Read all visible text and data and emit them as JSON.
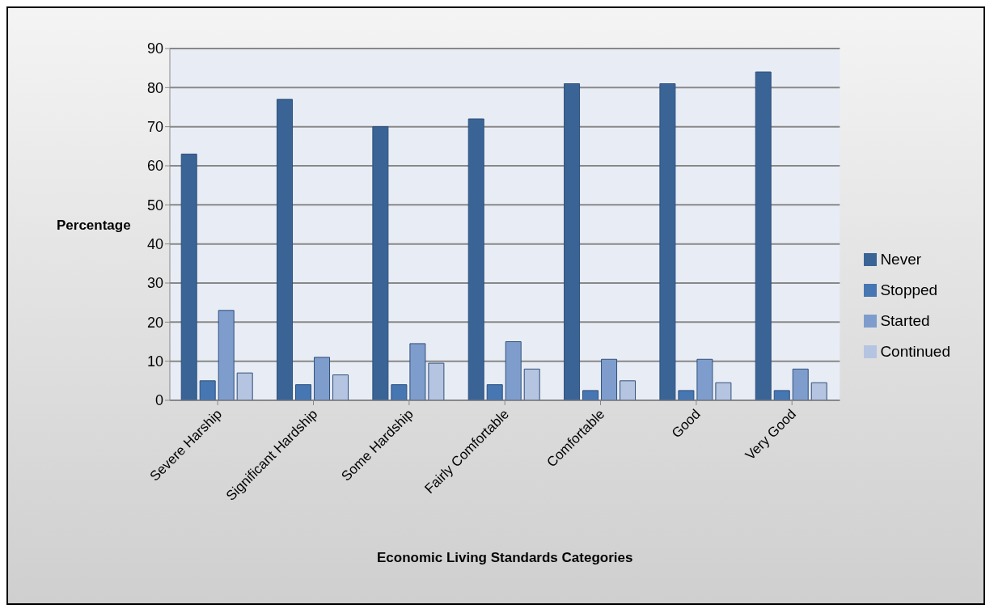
{
  "chart_data": {
    "type": "bar",
    "xlabel": "Economic Living Standards Categories",
    "ylabel": "Percentage",
    "categories": [
      "Severe Harship",
      "Significant Hardship",
      "Some Hardship",
      "Fairly Comfortable",
      "Comfortable",
      "Good",
      "Very Good"
    ],
    "series": [
      {
        "name": "Never",
        "color": "#3a6496",
        "values": [
          63,
          77,
          70,
          72,
          81,
          81,
          84
        ]
      },
      {
        "name": "Stopped",
        "color": "#4677b3",
        "values": [
          5,
          4,
          4,
          4,
          2.5,
          2.5,
          2.5
        ]
      },
      {
        "name": "Started",
        "color": "#7f9dcc",
        "values": [
          23,
          11,
          14.5,
          15,
          10.5,
          10.5,
          8
        ]
      },
      {
        "name": "Continued",
        "color": "#b5c4e0",
        "values": [
          7,
          6.5,
          9.5,
          8,
          5,
          4.5,
          4.5
        ]
      }
    ],
    "ylim": [
      0,
      90
    ],
    "yticks": [
      0,
      10,
      20,
      30,
      40,
      50,
      60,
      70,
      80,
      90
    ],
    "grid": "y",
    "legend": "right"
  }
}
